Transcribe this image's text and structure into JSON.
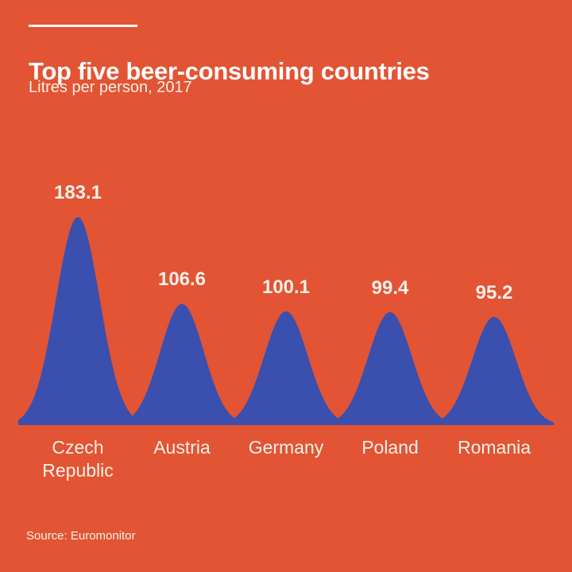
{
  "header": {
    "title": "Top five beer-consuming countries",
    "subtitle": "Litres per person, 2017"
  },
  "footer": {
    "source": "Source: Euromonitor"
  },
  "chart_data": {
    "type": "area",
    "style": "overlapping-bell-curves",
    "title": "Top five beer-consuming countries",
    "subtitle": "Litres per person, 2017",
    "unit": "Litres per person",
    "year": "2017",
    "categories": [
      "Czech Republic",
      "Austria",
      "Germany",
      "Poland",
      "Romania"
    ],
    "values": [
      183.1,
      106.6,
      100.1,
      99.4,
      95.2
    ],
    "value_labels": [
      "183.1",
      "106.6",
      "100.1",
      "99.4",
      "95.2"
    ],
    "ylim": [
      0,
      190
    ],
    "grid": false,
    "legend": false,
    "colors": {
      "background": "#E25433",
      "curve": "#3B4FAE",
      "text": "#FBF0E9",
      "title": "#FFFFFF"
    },
    "source": "Source: Euromonitor"
  }
}
